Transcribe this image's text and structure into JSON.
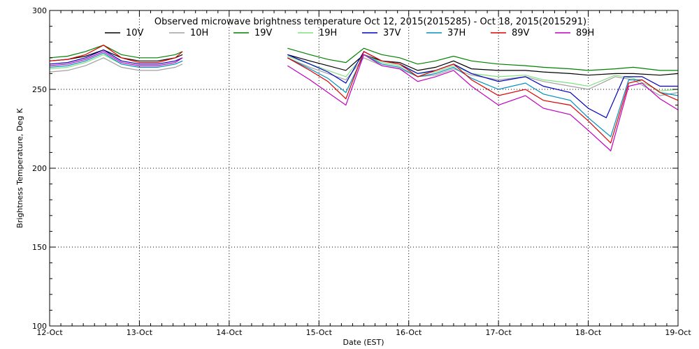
{
  "chart_data": {
    "type": "line",
    "title": "Observed microwave brightness temperature Oct 12, 2015(2015285) - Oct 18, 2015(2015291)",
    "xlabel": "Date (EST)",
    "ylabel": "Brightness Temperature, Deg K",
    "ylim": [
      100,
      300
    ],
    "xlim": [
      0,
      7
    ],
    "yticks": [
      100,
      150,
      200,
      250,
      300
    ],
    "xticks": [
      "12-Oct",
      "13-Oct",
      "14-Oct",
      "15-Oct",
      "16-Oct",
      "17-Oct",
      "18-Oct",
      "19-Oct"
    ],
    "grid": true,
    "legend_position": "top",
    "series": [
      {
        "name": "10V",
        "color": "#000000",
        "segments": [
          [
            [
              0,
              268
            ],
            [
              0.2,
              269
            ],
            [
              0.4,
              271
            ],
            [
              0.6,
              275
            ],
            [
              0.8,
              270
            ],
            [
              1.0,
              268
            ],
            [
              1.2,
              268
            ],
            [
              1.4,
              270
            ],
            [
              1.48,
              272
            ]
          ],
          [
            [
              2.65,
              272
            ],
            [
              2.9,
              268
            ],
            [
              3.1,
              265
            ],
            [
              3.3,
              262
            ],
            [
              3.5,
              272
            ],
            [
              3.7,
              268
            ],
            [
              3.9,
              267
            ],
            [
              4.1,
              262
            ],
            [
              4.3,
              264
            ],
            [
              4.5,
              268
            ],
            [
              4.7,
              263
            ],
            [
              5.0,
              262
            ],
            [
              5.3,
              262
            ],
            [
              5.5,
              261
            ],
            [
              5.8,
              260
            ],
            [
              6.0,
              259
            ],
            [
              6.3,
              260
            ],
            [
              6.5,
              260
            ],
            [
              6.8,
              259
            ],
            [
              7.0,
              260
            ]
          ]
        ]
      },
      {
        "name": "10H",
        "color": "#a0a0a0",
        "segments": [
          [
            [
              0,
              261
            ],
            [
              0.2,
              262
            ],
            [
              0.4,
              265
            ],
            [
              0.6,
              270
            ],
            [
              0.8,
              264
            ],
            [
              1.0,
              262
            ],
            [
              1.2,
              262
            ],
            [
              1.4,
              264
            ],
            [
              1.48,
              266
            ]
          ],
          [
            [
              2.65,
              270
            ],
            [
              2.9,
              264
            ],
            [
              3.1,
              260
            ],
            [
              3.3,
              256
            ],
            [
              3.5,
              270
            ],
            [
              3.7,
              265
            ],
            [
              3.9,
              263
            ],
            [
              4.1,
              258
            ],
            [
              4.3,
              259
            ],
            [
              4.5,
              263
            ],
            [
              4.7,
              259
            ],
            [
              5.0,
              256
            ],
            [
              5.3,
              258
            ],
            [
              5.5,
              255
            ],
            [
              5.8,
              252
            ],
            [
              6.0,
              250
            ],
            [
              6.3,
              258
            ],
            [
              6.5,
              256
            ],
            [
              6.8,
              246
            ],
            [
              7.0,
              248
            ]
          ]
        ]
      },
      {
        "name": "19V",
        "color": "#008000",
        "segments": [
          [
            [
              0,
              270
            ],
            [
              0.2,
              271
            ],
            [
              0.4,
              274
            ],
            [
              0.6,
              278
            ],
            [
              0.8,
              272
            ],
            [
              1.0,
              270
            ],
            [
              1.2,
              270
            ],
            [
              1.4,
              272
            ],
            [
              1.48,
              274
            ]
          ],
          [
            [
              2.65,
              276
            ],
            [
              2.9,
              272
            ],
            [
              3.1,
              269
            ],
            [
              3.3,
              267
            ],
            [
              3.5,
              276
            ],
            [
              3.7,
              272
            ],
            [
              3.9,
              270
            ],
            [
              4.1,
              266
            ],
            [
              4.3,
              268
            ],
            [
              4.5,
              271
            ],
            [
              4.7,
              268
            ],
            [
              5.0,
              266
            ],
            [
              5.3,
              265
            ],
            [
              5.5,
              264
            ],
            [
              5.8,
              263
            ],
            [
              6.0,
              262
            ],
            [
              6.3,
              263
            ],
            [
              6.5,
              264
            ],
            [
              6.8,
              262
            ],
            [
              7.0,
              262
            ]
          ]
        ]
      },
      {
        "name": "19H",
        "color": "#80e080",
        "segments": [
          [
            [
              0,
              263
            ],
            [
              0.2,
              264
            ],
            [
              0.4,
              267
            ],
            [
              0.6,
              272
            ],
            [
              0.8,
              266
            ],
            [
              1.0,
              264
            ],
            [
              1.2,
              264
            ],
            [
              1.4,
              266
            ],
            [
              1.48,
              268
            ]
          ],
          [
            [
              2.65,
              271
            ],
            [
              2.9,
              266
            ],
            [
              3.1,
              262
            ],
            [
              3.3,
              258
            ],
            [
              3.5,
              272
            ],
            [
              3.7,
              267
            ],
            [
              3.9,
              265
            ],
            [
              4.1,
              260
            ],
            [
              4.3,
              261
            ],
            [
              4.5,
              265
            ],
            [
              4.7,
              260
            ],
            [
              5.0,
              258
            ],
            [
              5.3,
              259
            ],
            [
              5.5,
              256
            ],
            [
              5.8,
              254
            ],
            [
              6.0,
              252
            ],
            [
              6.3,
              259
            ],
            [
              6.5,
              257
            ],
            [
              6.8,
              249
            ],
            [
              7.0,
              250
            ]
          ]
        ]
      },
      {
        "name": "37V",
        "color": "#0000c0",
        "segments": [
          [
            [
              0,
              266
            ],
            [
              0.2,
              267
            ],
            [
              0.4,
              270
            ],
            [
              0.6,
              275
            ],
            [
              0.8,
              268
            ],
            [
              1.0,
              266
            ],
            [
              1.2,
              266
            ],
            [
              1.4,
              268
            ],
            [
              1.48,
              270
            ]
          ],
          [
            [
              2.65,
              272
            ],
            [
              2.9,
              266
            ],
            [
              3.1,
              261
            ],
            [
              3.3,
              254
            ],
            [
              3.5,
              274
            ],
            [
              3.7,
              268
            ],
            [
              3.9,
              266
            ],
            [
              4.1,
              260
            ],
            [
              4.3,
              262
            ],
            [
              4.5,
              266
            ],
            [
              4.7,
              260
            ],
            [
              5.0,
              255
            ],
            [
              5.3,
              258
            ],
            [
              5.5,
              252
            ],
            [
              5.8,
              248
            ],
            [
              6.0,
              238
            ],
            [
              6.2,
              232
            ],
            [
              6.4,
              258
            ],
            [
              6.6,
              258
            ],
            [
              6.8,
              252
            ],
            [
              7.0,
              252
            ]
          ]
        ]
      },
      {
        "name": "37H",
        "color": "#0090c0",
        "segments": [
          [
            [
              0,
              264
            ],
            [
              0.2,
              265
            ],
            [
              0.4,
              268
            ],
            [
              0.6,
              273
            ],
            [
              0.8,
              266
            ],
            [
              1.0,
              264
            ],
            [
              1.2,
              264
            ],
            [
              1.4,
              266
            ],
            [
              1.48,
              268
            ]
          ],
          [
            [
              2.65,
              270
            ],
            [
              2.9,
              263
            ],
            [
              3.1,
              257
            ],
            [
              3.3,
              248
            ],
            [
              3.5,
              272
            ],
            [
              3.7,
              266
            ],
            [
              3.9,
              264
            ],
            [
              4.1,
              258
            ],
            [
              4.3,
              260
            ],
            [
              4.5,
              264
            ],
            [
              4.7,
              257
            ],
            [
              5.0,
              250
            ],
            [
              5.3,
              254
            ],
            [
              5.5,
              247
            ],
            [
              5.8,
              243
            ],
            [
              6.0,
              232
            ],
            [
              6.25,
              220
            ],
            [
              6.45,
              256
            ],
            [
              6.6,
              256
            ],
            [
              6.8,
              248
            ],
            [
              7.0,
              246
            ]
          ]
        ]
      },
      {
        "name": "89V",
        "color": "#e00000",
        "segments": [
          [
            [
              0,
              268
            ],
            [
              0.2,
              269
            ],
            [
              0.4,
              272
            ],
            [
              0.6,
              278
            ],
            [
              0.8,
              270
            ],
            [
              1.0,
              267
            ],
            [
              1.2,
              267
            ],
            [
              1.4,
              270
            ],
            [
              1.48,
              274
            ]
          ],
          [
            [
              2.65,
              270
            ],
            [
              2.9,
              262
            ],
            [
              3.1,
              255
            ],
            [
              3.3,
              244
            ],
            [
              3.5,
              274
            ],
            [
              3.7,
              268
            ],
            [
              3.9,
              266
            ],
            [
              4.1,
              258
            ],
            [
              4.3,
              262
            ],
            [
              4.5,
              266
            ],
            [
              4.7,
              256
            ],
            [
              5.0,
              246
            ],
            [
              5.3,
              250
            ],
            [
              5.5,
              243
            ],
            [
              5.8,
              240
            ],
            [
              6.0,
              230
            ],
            [
              6.25,
              216
            ],
            [
              6.45,
              254
            ],
            [
              6.6,
              256
            ],
            [
              6.8,
              248
            ],
            [
              7.0,
              243
            ]
          ]
        ]
      },
      {
        "name": "89H",
        "color": "#c000c0",
        "segments": [
          [
            [
              0,
              265
            ],
            [
              0.2,
              266
            ],
            [
              0.4,
              269
            ],
            [
              0.6,
              274
            ],
            [
              0.8,
              267
            ],
            [
              1.0,
              265
            ],
            [
              1.2,
              265
            ],
            [
              1.4,
              267
            ],
            [
              1.48,
              270
            ]
          ],
          [
            [
              2.65,
              265
            ],
            [
              2.9,
              256
            ],
            [
              3.1,
              248
            ],
            [
              3.3,
              240
            ],
            [
              3.5,
              272
            ],
            [
              3.7,
              265
            ],
            [
              3.9,
              263
            ],
            [
              4.1,
              255
            ],
            [
              4.3,
              258
            ],
            [
              4.5,
              262
            ],
            [
              4.7,
              252
            ],
            [
              5.0,
              240
            ],
            [
              5.3,
              246
            ],
            [
              5.5,
              238
            ],
            [
              5.8,
              234
            ],
            [
              6.0,
              224
            ],
            [
              6.25,
              211
            ],
            [
              6.45,
              252
            ],
            [
              6.6,
              254
            ],
            [
              6.8,
              244
            ],
            [
              7.0,
              237
            ]
          ]
        ]
      }
    ]
  }
}
